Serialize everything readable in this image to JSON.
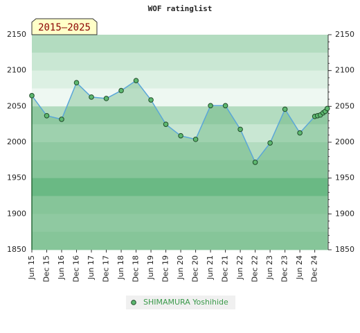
{
  "chart_data": {
    "type": "line",
    "title": "WOF ratinglist",
    "annotation": "2015–2025",
    "x": [
      0,
      1,
      2,
      3,
      4,
      5,
      6,
      7,
      8,
      9,
      10,
      11,
      12,
      13,
      14,
      15,
      16,
      17,
      18,
      19,
      19.19,
      19.38,
      19.56,
      19.7,
      19.84
    ],
    "series": [
      {
        "name": "SHIMAMURA Yoshihide",
        "color": "#5db870",
        "values": [
          2065,
          2037,
          2032,
          2083,
          2063,
          2061,
          2072,
          2086,
          2059,
          2025,
          2009,
          2004,
          2051,
          2051,
          2018,
          1972,
          1999,
          2046,
          2013,
          2036,
          2037,
          2038,
          2041,
          2043,
          2047
        ]
      }
    ],
    "xlim": [
      0,
      19.9
    ],
    "xticks": [
      {
        "value": 0,
        "label": "Jun 15"
      },
      {
        "value": 1,
        "label": "Dec 15"
      },
      {
        "value": 2,
        "label": "Jun 16"
      },
      {
        "value": 3,
        "label": "Dec 16"
      },
      {
        "value": 4,
        "label": "Jun 17"
      },
      {
        "value": 5,
        "label": "Dec 17"
      },
      {
        "value": 6,
        "label": "Jun 18"
      },
      {
        "value": 7,
        "label": "Dec 18"
      },
      {
        "value": 8,
        "label": "Jun 19"
      },
      {
        "value": 9,
        "label": "Dec 19"
      },
      {
        "value": 10,
        "label": "Jun 20"
      },
      {
        "value": 11,
        "label": "Dec 20"
      },
      {
        "value": 12,
        "label": "Jun 21"
      },
      {
        "value": 13,
        "label": "Dec 21"
      },
      {
        "value": 14,
        "label": "Jun 22"
      },
      {
        "value": 15,
        "label": "Dec 22"
      },
      {
        "value": 16,
        "label": "Jun 23"
      },
      {
        "value": 17,
        "label": "Dec 23"
      },
      {
        "value": 18,
        "label": "Jun 24"
      },
      {
        "value": 19,
        "label": "Dec 24"
      }
    ],
    "ylim": [
      1850,
      2150
    ],
    "yticks": [
      1850,
      1900,
      1950,
      2000,
      2050,
      2100,
      2150
    ],
    "line_color": "#5aa6d8",
    "legend": "bottom"
  }
}
